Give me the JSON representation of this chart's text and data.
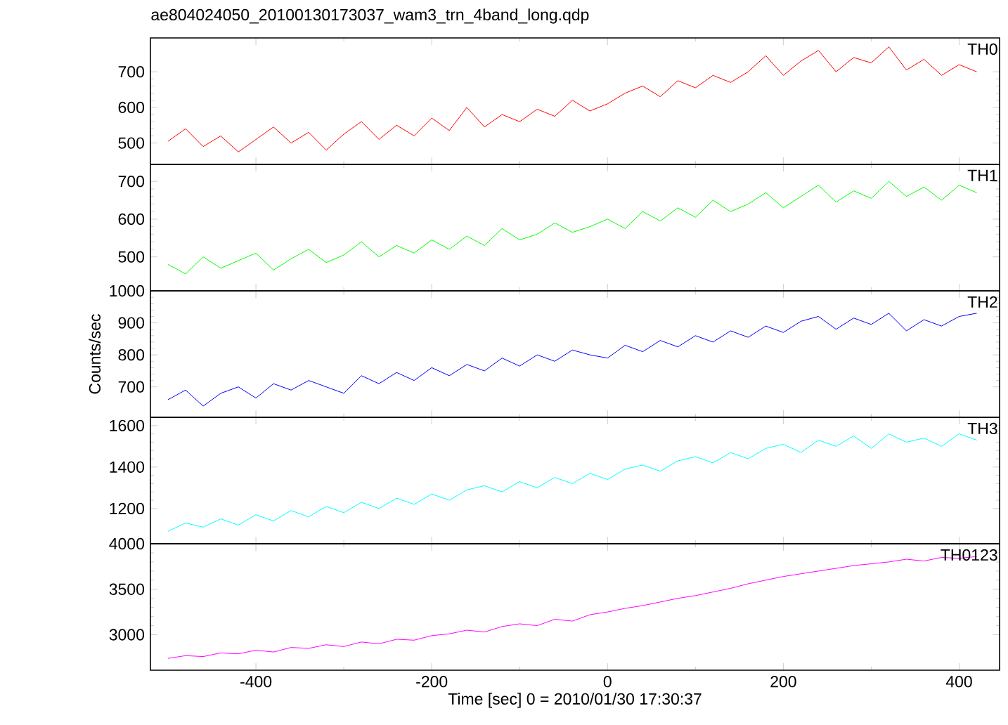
{
  "chart_data": [
    {
      "type": "line",
      "title": "ae804024050_20100130173037_wam3_trn_4band_long.qdp",
      "tick_labels": "y",
      "xlim": [
        -520,
        446
      ],
      "ylim": [
        440,
        795
      ],
      "xticks": [
        -400,
        -200,
        0,
        200,
        400
      ],
      "yticks": [
        500,
        600,
        700
      ],
      "x": [
        -500,
        -480,
        -460,
        -440,
        -420,
        -400,
        -380,
        -360,
        -340,
        -320,
        -300,
        -280,
        -260,
        -240,
        -220,
        -200,
        -180,
        -160,
        -140,
        -120,
        -100,
        -80,
        -60,
        -40,
        -20,
        0,
        20,
        40,
        60,
        80,
        100,
        120,
        140,
        160,
        180,
        200,
        220,
        240,
        260,
        280,
        300,
        320,
        340,
        360,
        380,
        400,
        420
      ],
      "series": [
        {
          "name": "TH0",
          "color": "#ff0000",
          "values": [
            505,
            540,
            490,
            520,
            475,
            510,
            545,
            500,
            530,
            480,
            525,
            560,
            510,
            550,
            520,
            570,
            535,
            600,
            545,
            580,
            560,
            595,
            575,
            620,
            590,
            610,
            640,
            660,
            630,
            675,
            655,
            690,
            670,
            700,
            745,
            690,
            730,
            760,
            700,
            740,
            725,
            770,
            705,
            735,
            690,
            720,
            700
          ]
        }
      ]
    },
    {
      "type": "line",
      "tick_labels": "y",
      "xlim": [
        -520,
        446
      ],
      "ylim": [
        410,
        745
      ],
      "xticks": [
        -400,
        -200,
        0,
        200,
        400
      ],
      "yticks": [
        500,
        600,
        700
      ],
      "x": [
        -500,
        -480,
        -460,
        -440,
        -420,
        -400,
        -380,
        -360,
        -340,
        -320,
        -300,
        -280,
        -260,
        -240,
        -220,
        -200,
        -180,
        -160,
        -140,
        -120,
        -100,
        -80,
        -60,
        -40,
        -20,
        0,
        20,
        40,
        60,
        80,
        100,
        120,
        140,
        160,
        180,
        200,
        220,
        240,
        260,
        280,
        300,
        320,
        340,
        360,
        380,
        400,
        420
      ],
      "series": [
        {
          "name": "TH1",
          "color": "#00ff00",
          "values": [
            480,
            455,
            500,
            470,
            490,
            510,
            465,
            495,
            520,
            485,
            505,
            540,
            500,
            530,
            510,
            545,
            520,
            555,
            530,
            575,
            545,
            560,
            590,
            565,
            580,
            600,
            575,
            620,
            595,
            630,
            605,
            650,
            620,
            640,
            670,
            630,
            660,
            690,
            645,
            675,
            655,
            700,
            660,
            685,
            650,
            690,
            670
          ]
        }
      ]
    },
    {
      "type": "line",
      "ylabel": "Counts/sec",
      "tick_labels": "y",
      "xlim": [
        -520,
        446
      ],
      "ylim": [
        605,
        1000
      ],
      "xticks": [
        -400,
        -200,
        0,
        200,
        400
      ],
      "yticks": [
        700,
        800,
        900,
        1000
      ],
      "x": [
        -500,
        -480,
        -460,
        -440,
        -420,
        -400,
        -380,
        -360,
        -340,
        -320,
        -300,
        -280,
        -260,
        -240,
        -220,
        -200,
        -180,
        -160,
        -140,
        -120,
        -100,
        -80,
        -60,
        -40,
        -20,
        0,
        20,
        40,
        60,
        80,
        100,
        120,
        140,
        160,
        180,
        200,
        220,
        240,
        260,
        280,
        300,
        320,
        340,
        360,
        380,
        400,
        420
      ],
      "series": [
        {
          "name": "TH2",
          "color": "#0000ff",
          "values": [
            660,
            690,
            640,
            680,
            700,
            665,
            710,
            690,
            720,
            700,
            680,
            735,
            710,
            745,
            720,
            760,
            735,
            770,
            750,
            790,
            765,
            800,
            780,
            815,
            800,
            790,
            830,
            810,
            845,
            825,
            860,
            840,
            875,
            855,
            890,
            870,
            905,
            920,
            880,
            915,
            895,
            930,
            875,
            910,
            890,
            920,
            930
          ]
        }
      ]
    },
    {
      "type": "line",
      "tick_labels": "y",
      "xlim": [
        -520,
        446
      ],
      "ylim": [
        1030,
        1640
      ],
      "xticks": [
        -400,
        -200,
        0,
        200,
        400
      ],
      "yticks": [
        1200,
        1400,
        1600
      ],
      "x": [
        -500,
        -480,
        -460,
        -440,
        -420,
        -400,
        -380,
        -360,
        -340,
        -320,
        -300,
        -280,
        -260,
        -240,
        -220,
        -200,
        -180,
        -160,
        -140,
        -120,
        -100,
        -80,
        -60,
        -40,
        -20,
        0,
        20,
        40,
        60,
        80,
        100,
        120,
        140,
        160,
        180,
        200,
        220,
        240,
        260,
        280,
        300,
        320,
        340,
        360,
        380,
        400,
        420
      ],
      "series": [
        {
          "name": "TH3",
          "color": "#00ffff",
          "values": [
            1090,
            1130,
            1110,
            1150,
            1120,
            1170,
            1140,
            1190,
            1160,
            1210,
            1180,
            1230,
            1200,
            1250,
            1220,
            1270,
            1240,
            1290,
            1310,
            1280,
            1330,
            1300,
            1350,
            1320,
            1370,
            1340,
            1390,
            1410,
            1380,
            1430,
            1450,
            1420,
            1470,
            1440,
            1490,
            1510,
            1470,
            1530,
            1500,
            1550,
            1490,
            1560,
            1520,
            1540,
            1500,
            1560,
            1530
          ]
        }
      ]
    },
    {
      "type": "line",
      "xlabel": "Time [sec] 0 = 2010/01/30 17:30:37",
      "xlim": [
        -520,
        446
      ],
      "ylim": [
        2610,
        4000
      ],
      "xticks": [
        -400,
        -200,
        0,
        200,
        400
      ],
      "yticks": [
        3000,
        3500,
        4000
      ],
      "x": [
        -500,
        -480,
        -460,
        -440,
        -420,
        -400,
        -380,
        -360,
        -340,
        -320,
        -300,
        -280,
        -260,
        -240,
        -220,
        -200,
        -180,
        -160,
        -140,
        -120,
        -100,
        -80,
        -60,
        -40,
        -20,
        0,
        20,
        40,
        60,
        80,
        100,
        120,
        140,
        160,
        180,
        200,
        220,
        240,
        260,
        280,
        300,
        320,
        340,
        360,
        380,
        400,
        420
      ],
      "series": [
        {
          "name": "TH0123",
          "color": "#ff00ff",
          "values": [
            2740,
            2770,
            2760,
            2800,
            2790,
            2830,
            2810,
            2860,
            2850,
            2890,
            2870,
            2920,
            2900,
            2950,
            2940,
            2990,
            3010,
            3050,
            3030,
            3090,
            3120,
            3100,
            3170,
            3150,
            3220,
            3250,
            3290,
            3320,
            3360,
            3400,
            3430,
            3470,
            3510,
            3560,
            3600,
            3640,
            3670,
            3700,
            3730,
            3760,
            3780,
            3800,
            3830,
            3810,
            3850,
            3840,
            3860
          ]
        }
      ]
    }
  ]
}
